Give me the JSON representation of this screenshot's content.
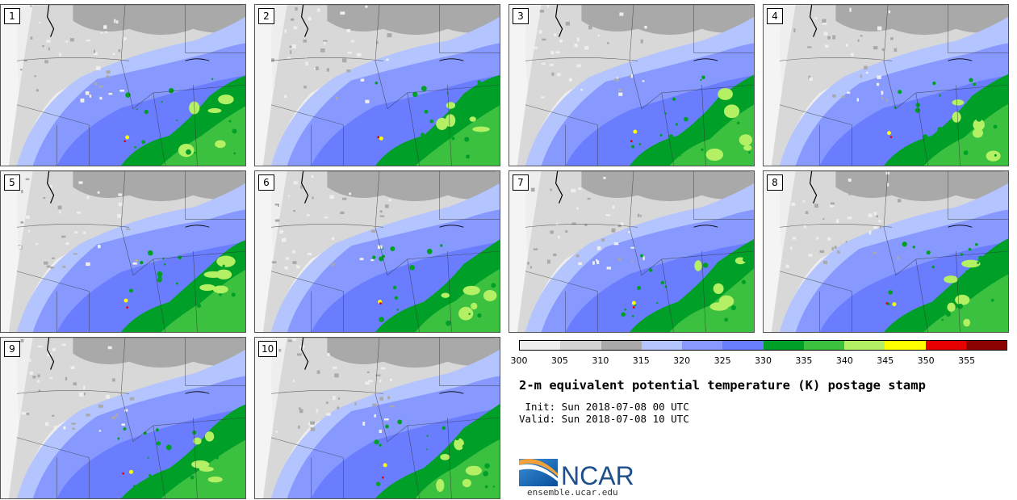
{
  "panels": [
    {
      "label": "1"
    },
    {
      "label": "2"
    },
    {
      "label": "3"
    },
    {
      "label": "4"
    },
    {
      "label": "5"
    },
    {
      "label": "6"
    },
    {
      "label": "7"
    },
    {
      "label": "8"
    },
    {
      "label": "9"
    },
    {
      "label": "10"
    }
  ],
  "colorbar": {
    "ticks": [
      "300",
      "305",
      "310",
      "315",
      "320",
      "325",
      "330",
      "335",
      "340",
      "345",
      "350",
      "355"
    ],
    "colors": [
      "#eeeeee",
      "#d3d3d3",
      "#a9a9a9",
      "#b4c4ff",
      "#8799ff",
      "#6a7dff",
      "#00a028",
      "#3cc040",
      "#b4f064",
      "#ffff00",
      "#e60000",
      "#8b0000"
    ]
  },
  "title": "2-m equivalent potential temperature (K) postage stamp",
  "init": " Init: Sun 2018-07-08 00 UTC",
  "valid": "Valid: Sun 2018-07-08 10 UTC",
  "logo": {
    "text": "NCAR",
    "url": "ensemble.ucar.edu"
  }
}
